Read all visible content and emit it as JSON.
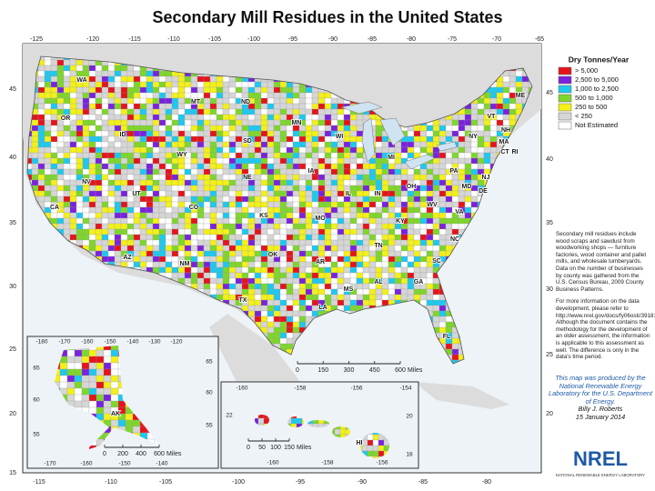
{
  "title": "Secondary Mill Residues in the United States",
  "legend": {
    "title": "Dry Tonnes/Year",
    "items": [
      {
        "label": "> 5,000",
        "color": "#e4141c"
      },
      {
        "label": "2,500 to 5,000",
        "color": "#7a22dc"
      },
      {
        "label": "1,000 to 2,500",
        "color": "#1ec8ee"
      },
      {
        "label": "500 to 1,000",
        "color": "#7fd62b"
      },
      {
        "label": "250 to 500",
        "color": "#f3f01a"
      },
      {
        "label": "< 250",
        "color": "#d6d6d6"
      },
      {
        "label": "Not Estimated",
        "color": "#ffffff"
      }
    ]
  },
  "description": [
    "Secondary mill residues include wood scraps and sawdust from woodworking shops — furniture factories, wood container and pallet mills, and wholesale lumberyards. Data on the number of businesses by county was gathered from the U.S. Census Bureau, 2009 County Business Patterns.",
    "For more information on the data development, please refer to http://www.nrel.gov/docs/fy06osti/39181.pdf. Although the document contains the methodology for the development of an older assessment, the information is applicable to this assessment as well. The difference is only in the data's time period."
  ],
  "credit": {
    "text": "This map was produced by the National Renewable Energy Laboratory for the U.S. Department of Energy.",
    "author": "Billy J. Roberts",
    "date": "15 January 2014"
  },
  "logo": {
    "name": "NREL",
    "subtitle": "NATIONAL RENEWABLE ENERGY LABORATORY"
  },
  "graticule": {
    "top": [
      -125,
      -120,
      -115,
      -110,
      -105,
      -100,
      -95,
      -90,
      -85,
      -80,
      -75,
      -70,
      -65
    ],
    "bottom": [
      -115,
      -110,
      -105,
      -100,
      -95,
      -90,
      -85,
      -80
    ],
    "left": [
      45,
      40,
      35,
      30,
      25,
      20,
      15
    ],
    "right": [
      45,
      40,
      35,
      30,
      25,
      20
    ]
  },
  "alaska_graticule": {
    "top": [
      -180,
      -170,
      -160,
      -150,
      -140,
      -130,
      -120
    ],
    "bottom": [
      -170,
      -160,
      -150,
      -140
    ],
    "left": [
      65,
      60,
      55
    ],
    "right": [
      65,
      60,
      55
    ]
  },
  "hawaii_graticule": {
    "top": [
      -160,
      -158,
      -156,
      -154
    ],
    "bottom": [
      -160,
      -158,
      -156
    ],
    "left": [
      22
    ],
    "right": [
      20,
      18
    ]
  },
  "state_labels": [
    "WA",
    "OR",
    "ID",
    "MT",
    "WY",
    "NV",
    "UT",
    "CO",
    "CA",
    "AZ",
    "NM",
    "ND",
    "SD",
    "NE",
    "KS",
    "OK",
    "TX",
    "MN",
    "IA",
    "MO",
    "AR",
    "LA",
    "WI",
    "IL",
    "MS",
    "MI",
    "IN",
    "KY",
    "TN",
    "AL",
    "GA",
    "FL",
    "OH",
    "WV",
    "VA",
    "NC",
    "SC",
    "PA",
    "NY",
    "ME",
    "VT",
    "NH",
    "MA",
    "CT",
    "RI",
    "NJ",
    "MD",
    "DE",
    "AK",
    "HI"
  ],
  "scale_bars": {
    "conus": {
      "ticks": [
        0,
        150,
        300,
        450,
        600
      ],
      "unit": "Miles"
    },
    "alaska": {
      "ticks": [
        0,
        200,
        400,
        600
      ],
      "unit": "Miles"
    },
    "hawaii": {
      "ticks": [
        0,
        50,
        100,
        150
      ],
      "unit": "Miles"
    }
  }
}
